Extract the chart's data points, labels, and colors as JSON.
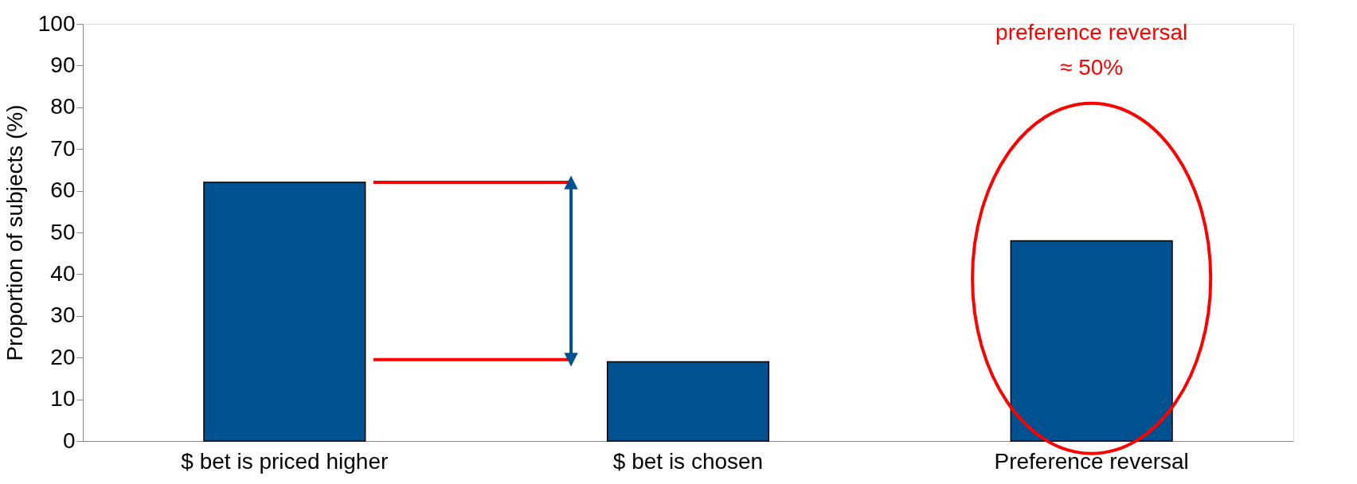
{
  "chart_data": {
    "type": "bar",
    "ylabel": "Proportion of subjects (%)",
    "categories": [
      "$ bet is priced higher",
      "$ bet is chosen",
      "Preference reversal"
    ],
    "values": [
      62,
      19,
      48
    ],
    "color": "#00518f",
    "ylim": [
      0,
      100
    ],
    "yticks": [
      0,
      10,
      20,
      30,
      40,
      50,
      60,
      70,
      80,
      90,
      100
    ],
    "grid": false,
    "ref_lines": [
      {
        "axis": "y",
        "value": 62,
        "color": "#ff0000"
      },
      {
        "axis": "y",
        "value": 19.5,
        "color": "#ff0000"
      }
    ],
    "annotations": [
      "preference reversal\n≈ 50%"
    ]
  }
}
